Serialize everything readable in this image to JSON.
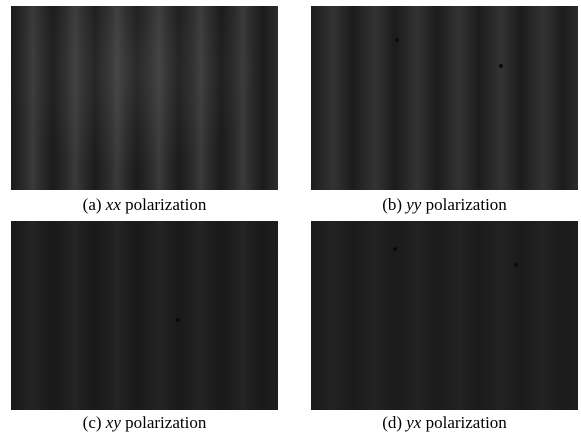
{
  "panels": [
    {
      "label": "(a)",
      "variable": "xx",
      "text": "polarization"
    },
    {
      "label": "(b)",
      "variable": "yy",
      "text": "polarization"
    },
    {
      "label": "(c)",
      "variable": "xy",
      "text": "polarization"
    },
    {
      "label": "(d)",
      "variable": "yx",
      "text": "polarization"
    }
  ]
}
